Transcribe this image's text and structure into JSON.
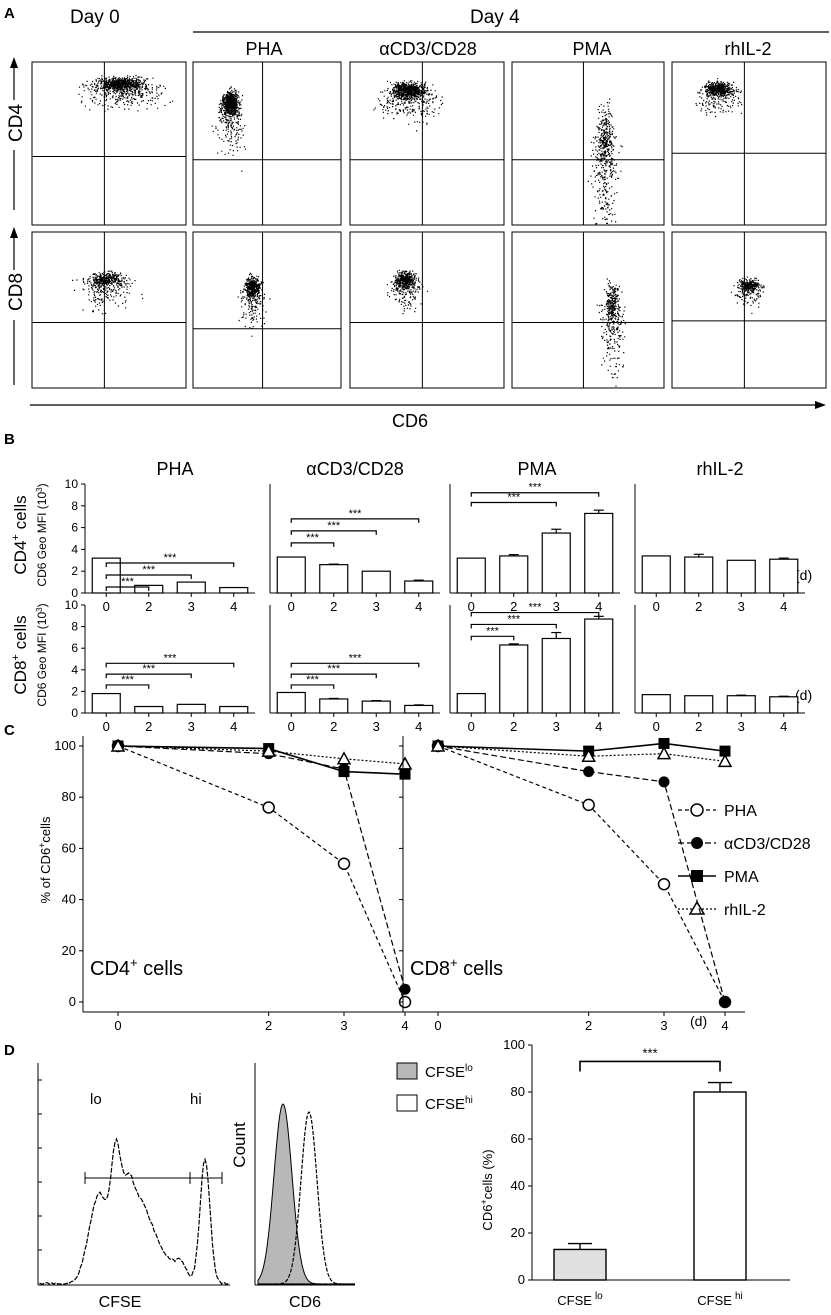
{
  "panel_letters": {
    "a": "A",
    "b": "B",
    "c": "C",
    "d": "D"
  },
  "panel_a": {
    "day0_label": "Day 0",
    "day4_label": "Day 4",
    "conditions": [
      "PHA",
      "αCD3/CD28",
      "PMA",
      "rhIL-2"
    ],
    "row_labels": [
      "CD4",
      "CD8"
    ],
    "x_axis_label": "CD6"
  },
  "chart_data": [
    {
      "type": "bar",
      "panel": "B",
      "titles": [
        "PHA",
        "αCD3/CD28",
        "PMA",
        "rhIL-2"
      ],
      "categories": [
        "0",
        "2",
        "3",
        "4"
      ],
      "x_unit": "(d)",
      "ylabel_main": "CD6 Geo MFI (10",
      "ylabel_sup": "3",
      "ylabel_end": ")",
      "ylim": [
        0,
        10
      ],
      "yticks": [
        "0",
        "2",
        "4",
        "6",
        "8",
        "10"
      ],
      "significance": "***",
      "rows": [
        {
          "name": "CD4",
          "sup": "+",
          "suffix": " cells",
          "series": [
            {
              "name": "PHA",
              "values": [
                3.2,
                0.7,
                1.0,
                0.5
              ],
              "errors": [
                0,
                0,
                0,
                0
              ],
              "brackets": [
                1,
                2,
                3
              ],
              "bracket_levels": [
                0.55,
                1.65,
                2.75
              ]
            },
            {
              "name": "αCD3/CD28",
              "values": [
                3.3,
                2.6,
                2.0,
                1.1
              ],
              "errors": [
                0,
                0.05,
                0,
                0.08
              ],
              "brackets": [
                1,
                2,
                3
              ],
              "bracket_levels": [
                4.6,
                5.7,
                6.8
              ]
            },
            {
              "name": "PMA",
              "values": [
                3.2,
                3.4,
                5.5,
                7.3
              ],
              "errors": [
                0,
                0.12,
                0.35,
                0.3
              ],
              "brackets": [
                2,
                3
              ],
              "bracket_levels": [
                8.3,
                9.2
              ]
            },
            {
              "name": "rhIL-2",
              "values": [
                3.4,
                3.3,
                3.0,
                3.1
              ],
              "errors": [
                0,
                0.25,
                0,
                0.1
              ],
              "brackets": [],
              "bracket_levels": []
            }
          ]
        },
        {
          "name": "CD8",
          "sup": "+",
          "suffix": " cells",
          "series": [
            {
              "name": "PHA",
              "values": [
                1.8,
                0.6,
                0.8,
                0.6
              ],
              "errors": [
                0,
                0,
                0,
                0
              ],
              "brackets": [
                1,
                2,
                3
              ],
              "bracket_levels": [
                2.6,
                3.6,
                4.6
              ]
            },
            {
              "name": "αCD3/CD28",
              "values": [
                1.9,
                1.3,
                1.1,
                0.7
              ],
              "errors": [
                0,
                0.05,
                0.05,
                0.05
              ],
              "brackets": [
                1,
                2,
                3
              ],
              "bracket_levels": [
                2.6,
                3.6,
                4.6
              ]
            },
            {
              "name": "PMA",
              "values": [
                1.8,
                6.3,
                6.9,
                8.7
              ],
              "errors": [
                0,
                0.1,
                0.55,
                0.25
              ],
              "brackets": [
                1,
                2,
                3
              ],
              "bracket_levels": [
                7.1,
                8.2,
                9.3
              ]
            },
            {
              "name": "rhIL-2",
              "values": [
                1.7,
                1.6,
                1.6,
                1.5
              ],
              "errors": [
                0,
                0,
                0.05,
                0.05
              ],
              "brackets": [],
              "bracket_levels": []
            }
          ]
        }
      ]
    },
    {
      "type": "line",
      "panel": "C",
      "x": [
        0,
        2,
        3,
        4
      ],
      "xticks": [
        "0",
        "2",
        "3",
        "4"
      ],
      "x_unit": "(d)",
      "ylabel_main": "% of CD6",
      "ylabel_sup": "+",
      "ylabel_end": "cells",
      "ylim": [
        0,
        100
      ],
      "yticks": [
        "0",
        "20",
        "40",
        "60",
        "80",
        "100"
      ],
      "subplots": [
        {
          "label": "CD4",
          "label_sup": "+",
          "label_end": " cells",
          "series": [
            {
              "name": "PHA",
              "values": [
                100,
                76,
                54,
                0
              ]
            },
            {
              "name": "αCD3/CD28",
              "values": [
                100,
                97,
                91,
                5
              ]
            },
            {
              "name": "PMA",
              "values": [
                100,
                99,
                90,
                89
              ]
            },
            {
              "name": "rhIL-2",
              "values": [
                100,
                98,
                95,
                93
              ]
            }
          ]
        },
        {
          "label": "CD8",
          "label_sup": "+",
          "label_end": " cells",
          "series": [
            {
              "name": "PHA",
              "values": [
                100,
                77,
                46,
                0
              ]
            },
            {
              "name": "αCD3/CD28",
              "values": [
                100,
                90,
                86,
                0
              ]
            },
            {
              "name": "PMA",
              "values": [
                100,
                98,
                101,
                98
              ]
            },
            {
              "name": "rhIL-2",
              "values": [
                100,
                96,
                97,
                94
              ]
            }
          ]
        }
      ],
      "legend": [
        "PHA",
        "αCD3/CD28",
        "PMA",
        "rhIL-2"
      ],
      "markers": [
        "open-circle",
        "filled-circle",
        "filled-square",
        "open-triangle"
      ]
    },
    {
      "type": "bar",
      "panel": "D",
      "categories": [
        {
          "main": "CFSE",
          "sup": "lo"
        },
        {
          "main": "CFSE",
          "sup": "hi"
        }
      ],
      "values": [
        13,
        80
      ],
      "errors": [
        2.5,
        4
      ],
      "ylim": [
        0,
        100
      ],
      "yticks": [
        "0",
        "20",
        "40",
        "60",
        "80",
        "100"
      ],
      "ylabel_main": "CD6",
      "ylabel_sup": "+",
      "ylabel_end": "cells (%)",
      "significance": "***"
    }
  ],
  "panel_d_hist": {
    "cfse_axis_label": "CFSE",
    "lo_label": "lo",
    "hi_label": "hi",
    "count_label": "Count",
    "cd6_axis_label": "CD6",
    "legend": [
      {
        "main": "CFSE",
        "sup": "lo",
        "fill": "#b8b8b8"
      },
      {
        "main": "CFSE",
        "sup": "hi",
        "fill": "#ffffff"
      }
    ]
  }
}
